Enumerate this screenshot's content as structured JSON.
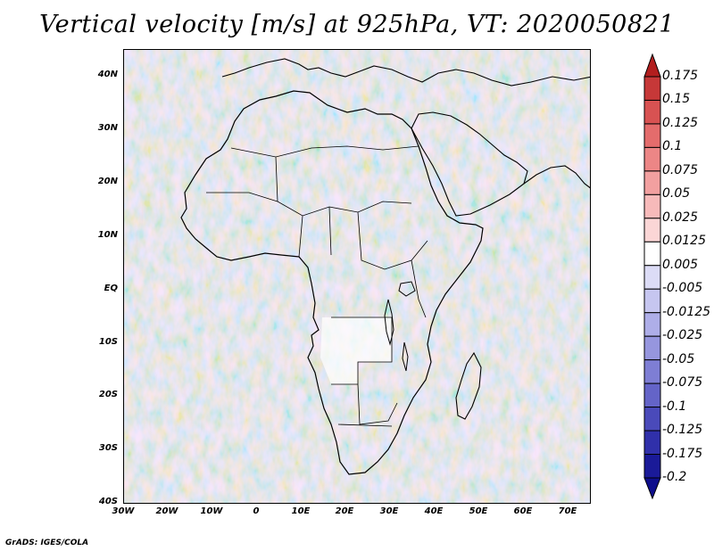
{
  "title": "Vertical velocity [m/s] at 925hPa, VT: 2020050821",
  "y_axis": {
    "ticks": [
      "40N",
      "30N",
      "20N",
      "10N",
      "EQ",
      "10S",
      "20S",
      "30S",
      "40S"
    ]
  },
  "x_axis": {
    "ticks": [
      "30W",
      "20W",
      "10W",
      "0",
      "10E",
      "20E",
      "30E",
      "40E",
      "50E",
      "60E",
      "70E"
    ]
  },
  "colorbar": {
    "labels": [
      "0.175",
      "0.15",
      "0.125",
      "0.1",
      "0.075",
      "0.05",
      "0.025",
      "0.0125",
      "0.005",
      "-0.005",
      "-0.0125",
      "-0.025",
      "-0.05",
      "-0.075",
      "-0.1",
      "-0.125",
      "-0.175",
      "-0.2"
    ],
    "colors": [
      "#b21e1e",
      "#c63838",
      "#d85252",
      "#e46c6c",
      "#ec8686",
      "#f2a0a0",
      "#f7baba",
      "#fbd6d6",
      "#ffffff",
      "#dcdcf6",
      "#c6c6f0",
      "#aeaee8",
      "#9696de",
      "#7e7ed4",
      "#6464c8",
      "#4a4aba",
      "#3030aa",
      "#1a1a98",
      "#0e0e8c"
    ]
  },
  "footer": "GrADS: IGES/COLA"
}
